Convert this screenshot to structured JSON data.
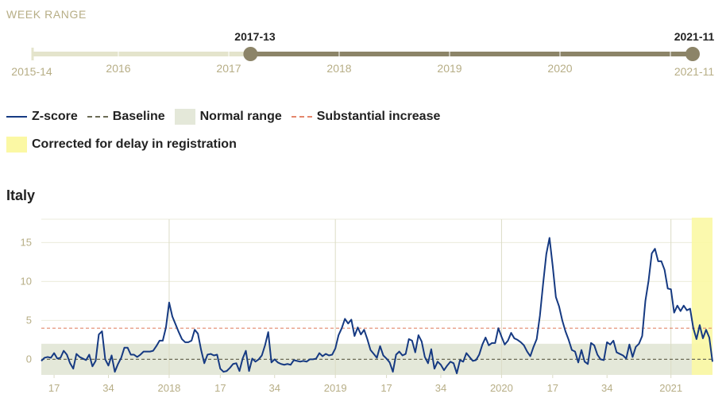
{
  "week_range": {
    "heading": "WEEK RANGE",
    "start_label": "2015-14",
    "end_label": "2021-11",
    "year_labels": [
      "2016",
      "2017",
      "2018",
      "2019",
      "2020",
      "2021"
    ],
    "selected_start": "2017-13",
    "selected_end": "2021-11",
    "selected_start_fraction": 0.331,
    "selected_end_fraction": 1.0
  },
  "legend": {
    "zscore": "Z-score",
    "baseline": "Baseline",
    "normal_range": "Normal range",
    "substantial_increase": "Substantial increase",
    "corrected": "Corrected for delay in registration"
  },
  "country": "Italy",
  "colors": {
    "zscore": "#163a82",
    "baseline": "#6b6b55",
    "normal_range": "#e4e8d9",
    "substantial": "#e4876c",
    "corrected": "#fbf8a4",
    "axis_text": "#b7ae86",
    "slider_track": "#e4e4cc",
    "slider_selected": "#8c8468"
  },
  "chart_data": {
    "type": "line",
    "title": "Italy",
    "xlabel": "",
    "ylabel": "",
    "ylim": [
      -2,
      18
    ],
    "yticks": [
      0,
      5,
      10,
      15
    ],
    "grid": true,
    "baseline": 0,
    "normal_range": [
      -2,
      2
    ],
    "substantial_increase": 4,
    "x_start_week": "2017-13",
    "x_end_week": "2021-11",
    "x_ticks": [
      {
        "week_index": 4,
        "label": "17"
      },
      {
        "week_index": 21,
        "label": "34"
      },
      {
        "week_index": 40,
        "label": "2018"
      },
      {
        "week_index": 56,
        "label": "17"
      },
      {
        "week_index": 73,
        "label": "34"
      },
      {
        "week_index": 92,
        "label": "2019"
      },
      {
        "week_index": 108,
        "label": "17"
      },
      {
        "week_index": 125,
        "label": "34"
      },
      {
        "week_index": 144,
        "label": "2020"
      },
      {
        "week_index": 160,
        "label": "17"
      },
      {
        "week_index": 177,
        "label": "34"
      },
      {
        "week_index": 197,
        "label": "2021"
      }
    ],
    "year_gridline_week_indices": [
      40,
      92,
      144,
      197
    ],
    "corrected_from_week_index": 204,
    "series": [
      {
        "name": "Z-score",
        "values": [
          -0.2,
          0.2,
          0.3,
          0.2,
          0.8,
          0.1,
          0.2,
          1.1,
          0.6,
          -0.5,
          -1.2,
          0.7,
          0.3,
          0.1,
          -0.1,
          0.6,
          -0.9,
          -0.2,
          3.2,
          3.6,
          0.0,
          -0.8,
          0.5,
          -1.6,
          -0.6,
          0.2,
          1.5,
          1.5,
          0.6,
          0.6,
          0.3,
          0.6,
          1.0,
          1.0,
          1.0,
          1.1,
          1.7,
          2.4,
          2.4,
          4.1,
          7.3,
          5.5,
          4.5,
          3.5,
          2.6,
          2.2,
          2.2,
          2.4,
          3.8,
          3.3,
          1.2,
          -0.5,
          0.6,
          0.7,
          0.5,
          0.6,
          -1.2,
          -1.6,
          -1.5,
          -1.1,
          -0.6,
          -0.5,
          -1.5,
          0.1,
          1.1,
          -1.5,
          0.1,
          -0.3,
          0.0,
          0.5,
          1.8,
          3.5,
          -0.4,
          0.0,
          -0.4,
          -0.6,
          -0.7,
          -0.6,
          -0.7,
          -0.1,
          -0.2,
          -0.3,
          -0.2,
          -0.3,
          0.0,
          0.0,
          0.1,
          0.8,
          0.4,
          0.7,
          0.5,
          0.6,
          1.4,
          3.1,
          4.0,
          5.2,
          4.6,
          5.1,
          3.0,
          4.1,
          3.2,
          3.8,
          2.6,
          1.2,
          0.7,
          0.2,
          1.7,
          0.5,
          0.1,
          -0.4,
          -1.6,
          0.6,
          1.0,
          0.5,
          0.7,
          2.6,
          2.4,
          0.9,
          3.1,
          2.3,
          0.3,
          -0.5,
          1.3,
          -1.2,
          -0.3,
          -0.7,
          -1.4,
          -0.8,
          -0.3,
          -0.5,
          -1.8,
          -0.1,
          -0.3,
          0.8,
          0.3,
          -0.2,
          -0.1,
          0.6,
          1.9,
          2.8,
          1.8,
          2.1,
          2.1,
          4.0,
          2.9,
          1.9,
          2.4,
          3.4,
          2.7,
          2.5,
          2.2,
          1.8,
          1.0,
          0.4,
          1.6,
          2.6,
          5.6,
          9.7,
          13.5,
          15.6,
          12.0,
          8.0,
          6.8,
          5.0,
          3.6,
          2.5,
          1.2,
          1.0,
          -0.4,
          1.2,
          -0.3,
          -0.6,
          2.1,
          1.8,
          0.6,
          0.0,
          -0.1,
          2.2,
          1.9,
          2.4,
          0.9,
          0.7,
          0.5,
          0.1,
          1.9,
          0.3,
          1.6,
          2.0,
          3.0,
          7.5,
          10.1,
          13.6,
          14.2,
          12.6,
          12.6,
          11.5,
          9.1,
          9.0,
          6.0,
          6.9,
          6.2,
          6.9,
          6.3,
          6.5,
          4.0,
          2.6,
          4.4,
          2.7,
          3.8,
          2.8,
          -0.3
        ]
      }
    ]
  }
}
